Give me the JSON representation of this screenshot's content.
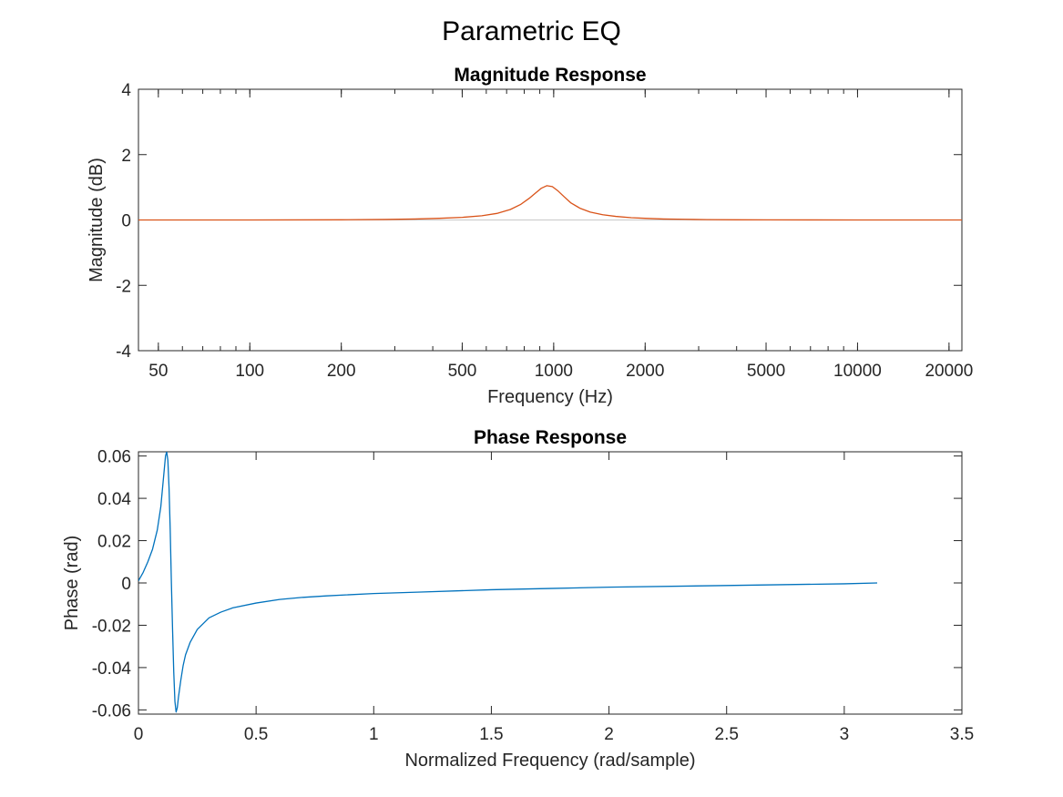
{
  "figure_title": "Parametric EQ",
  "colors": {
    "magnitude_line": "#D95319",
    "phase_line": "#0072BD",
    "zero_line": "#C8C8C8",
    "axes": "#262626"
  },
  "chart_data": [
    {
      "type": "line",
      "title": "Magnitude Response",
      "xlabel": "Frequency (Hz)",
      "ylabel": "Magnitude (dB)",
      "xscale": "log",
      "xlim": [
        43,
        22050
      ],
      "ylim": [
        -4,
        4
      ],
      "xticks": [
        50,
        100,
        200,
        500,
        1000,
        2000,
        5000,
        10000,
        20000
      ],
      "xtick_labels": [
        "50",
        "100",
        "200",
        "500",
        "1000",
        "2000",
        "5000",
        "10000",
        "20000"
      ],
      "yticks": [
        -4,
        -2,
        0,
        2,
        4
      ],
      "ytick_labels": [
        "-4",
        "-2",
        "0",
        "2",
        "4"
      ],
      "grid": false,
      "reference_line_y": 0,
      "series": [
        {
          "x": [
            43,
            100,
            200,
            280,
            350,
            420,
            500,
            580,
            650,
            720,
            780,
            830,
            870,
            910,
            950,
            990,
            1030,
            1080,
            1140,
            1220,
            1320,
            1450,
            1600,
            1800,
            2000,
            2300,
            2700,
            3200,
            4000,
            5000,
            7000,
            10000,
            15000,
            22050
          ],
          "y": [
            0,
            0.0,
            0.005,
            0.015,
            0.03,
            0.05,
            0.08,
            0.13,
            0.2,
            0.32,
            0.48,
            0.66,
            0.82,
            0.97,
            1.05,
            1.02,
            0.9,
            0.72,
            0.52,
            0.36,
            0.24,
            0.16,
            0.11,
            0.07,
            0.05,
            0.03,
            0.02,
            0.01,
            0.005,
            0.003,
            0.001,
            0.0,
            0.0,
            0
          ]
        }
      ]
    },
    {
      "type": "line",
      "title": "Phase Response",
      "xlabel": "Normalized Frequency (rad/sample)",
      "ylabel": "Phase (rad)",
      "xlim": [
        0,
        3.5
      ],
      "ylim": [
        -0.062,
        0.062
      ],
      "xticks": [
        0,
        0.5,
        1,
        1.5,
        2,
        2.5,
        3,
        3.5
      ],
      "xtick_labels": [
        "0",
        "0.5",
        "1",
        "1.5",
        "2",
        "2.5",
        "3",
        "3.5"
      ],
      "yticks": [
        -0.06,
        -0.04,
        -0.02,
        0,
        0.02,
        0.04,
        0.06
      ],
      "ytick_labels": [
        "-0.06",
        "-0.04",
        "-0.02",
        "0",
        "0.02",
        "0.04",
        "0.06"
      ],
      "grid": false,
      "series": [
        {
          "x": [
            0,
            0.02,
            0.04,
            0.06,
            0.08,
            0.095,
            0.105,
            0.115,
            0.12,
            0.125,
            0.13,
            0.135,
            0.14,
            0.145,
            0.15,
            0.155,
            0.16,
            0.165,
            0.17,
            0.18,
            0.19,
            0.2,
            0.22,
            0.25,
            0.3,
            0.35,
            0.4,
            0.5,
            0.6,
            0.7,
            0.8,
            1.0,
            1.2,
            1.5,
            1.75,
            2.0,
            2.5,
            3.0,
            3.14
          ],
          "y": [
            0.001,
            0.005,
            0.01,
            0.016,
            0.025,
            0.036,
            0.048,
            0.06,
            0.062,
            0.058,
            0.045,
            0.025,
            0.0,
            -0.022,
            -0.042,
            -0.056,
            -0.061,
            -0.059,
            -0.054,
            -0.046,
            -0.039,
            -0.034,
            -0.028,
            -0.022,
            -0.0165,
            -0.0138,
            -0.0118,
            -0.0095,
            -0.0078,
            -0.0068,
            -0.0061,
            -0.005,
            -0.0043,
            -0.0032,
            -0.0026,
            -0.002,
            -0.0012,
            -0.0004,
            0.0
          ]
        }
      ]
    }
  ]
}
